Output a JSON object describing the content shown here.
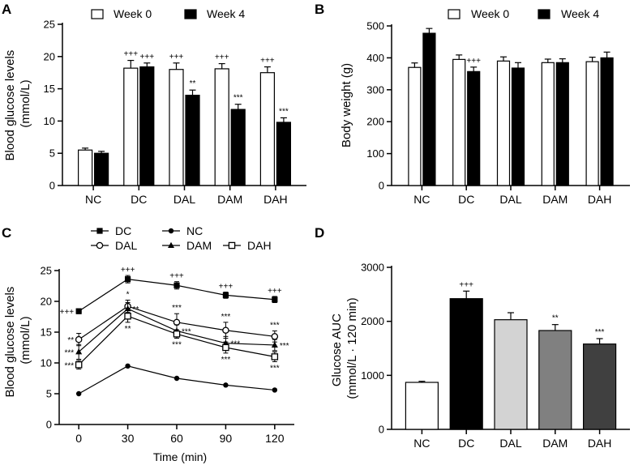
{
  "chart_data": [
    {
      "panel": "A",
      "type": "bar",
      "ylabel_lines": [
        "Blood glucose levels",
        "(mmol/L)"
      ],
      "ylim": [
        0,
        25
      ],
      "yticks": [
        0,
        5,
        10,
        15,
        20,
        25
      ],
      "categories": [
        "NC",
        "DC",
        "DAL",
        "DAM",
        "DAH"
      ],
      "series": [
        {
          "name": "Week 0",
          "fill": "#ffffff",
          "values": [
            5.5,
            18.2,
            18.0,
            18.1,
            17.5
          ],
          "errors": [
            0.3,
            1.2,
            1.0,
            0.8,
            0.9
          ]
        },
        {
          "name": "Week 4",
          "fill": "#000000",
          "values": [
            5.0,
            18.4,
            14.0,
            11.8,
            9.8
          ],
          "errors": [
            0.3,
            0.6,
            0.8,
            0.8,
            0.7
          ]
        }
      ],
      "annotations": [
        {
          "series": 0,
          "index": 1,
          "text": "+++"
        },
        {
          "series": 1,
          "index": 1,
          "text": "+++"
        },
        {
          "series": 0,
          "index": 2,
          "text": "+++"
        },
        {
          "series": 1,
          "index": 2,
          "text": "**"
        },
        {
          "series": 0,
          "index": 3,
          "text": "+++"
        },
        {
          "series": 1,
          "index": 3,
          "text": "***"
        },
        {
          "series": 0,
          "index": 4,
          "text": "+++"
        },
        {
          "series": 1,
          "index": 4,
          "text": "***"
        }
      ]
    },
    {
      "panel": "B",
      "type": "bar",
      "ylabel_lines": [
        "Body weight (g)"
      ],
      "ylim": [
        0,
        500
      ],
      "yticks": [
        0,
        100,
        200,
        300,
        400,
        500
      ],
      "categories": [
        "NC",
        "DC",
        "DAL",
        "DAM",
        "DAH"
      ],
      "series": [
        {
          "name": "Week 0",
          "fill": "#ffffff",
          "values": [
            370,
            395,
            390,
            385,
            388
          ],
          "errors": [
            14,
            14,
            13,
            11,
            14
          ]
        },
        {
          "name": "Week 4",
          "fill": "#000000",
          "values": [
            477,
            357,
            368,
            385,
            400
          ],
          "errors": [
            15,
            14,
            17,
            12,
            18
          ]
        }
      ],
      "annotations": [
        {
          "series": 1,
          "index": 1,
          "text": "+++"
        }
      ]
    },
    {
      "panel": "C",
      "type": "line",
      "ylabel_lines": [
        "Blood glucose levels",
        "(mmol/L)"
      ],
      "xlabel": "Time (min)",
      "x": [
        0,
        30,
        60,
        90,
        120
      ],
      "xlim": [
        -12,
        132
      ],
      "ylim": [
        0,
        25
      ],
      "yticks": [
        0,
        5,
        10,
        15,
        20,
        25
      ],
      "series": [
        {
          "name": "DC",
          "marker": "square",
          "values": [
            18.4,
            23.6,
            22.6,
            21.0,
            20.3
          ],
          "errors": [
            0.4,
            0.6,
            0.6,
            0.5,
            0.5
          ]
        },
        {
          "name": "NC",
          "marker": "circle",
          "values": [
            5.0,
            9.5,
            7.5,
            6.4,
            5.6
          ],
          "errors": [
            0.2,
            0.2,
            0.2,
            0.2,
            0.2
          ]
        },
        {
          "name": "DAL",
          "marker": "open-circle",
          "values": [
            13.8,
            19.2,
            16.6,
            15.3,
            14.3
          ],
          "errors": [
            1.0,
            1.0,
            1.4,
            1.3,
            0.9
          ]
        },
        {
          "name": "DAM",
          "marker": "triangle",
          "values": [
            11.8,
            18.8,
            15.2,
            13.2,
            12.9
          ],
          "errors": [
            1.2,
            1.0,
            1.0,
            1.1,
            0.9
          ]
        },
        {
          "name": "DAH",
          "marker": "open-square",
          "values": [
            9.7,
            17.6,
            14.7,
            12.5,
            11.0
          ],
          "errors": [
            0.7,
            1.0,
            0.7,
            0.9,
            0.8
          ]
        }
      ],
      "annotations": [
        {
          "text": "+++",
          "x": 0,
          "y": 18.4,
          "pos": "left"
        },
        {
          "text": "**",
          "x": 0,
          "y": 13.8,
          "pos": "left"
        },
        {
          "text": "***",
          "x": 0,
          "y": 11.8,
          "pos": "left"
        },
        {
          "text": "***",
          "x": 0,
          "y": 9.7,
          "pos": "left"
        },
        {
          "text": "+++",
          "x": 30,
          "y": 24.2,
          "pos": "above"
        },
        {
          "text": "*",
          "x": 30,
          "y": 20.2,
          "pos": "above"
        },
        {
          "text": "**",
          "x": 30,
          "y": 18.8,
          "pos": "right"
        },
        {
          "text": "**",
          "x": 30,
          "y": 16.6,
          "pos": "below"
        },
        {
          "text": "+++",
          "x": 60,
          "y": 23.2,
          "pos": "above"
        },
        {
          "text": "***",
          "x": 60,
          "y": 18.0,
          "pos": "above"
        },
        {
          "text": "***",
          "x": 60,
          "y": 15.2,
          "pos": "right"
        },
        {
          "text": "***",
          "x": 60,
          "y": 14.0,
          "pos": "below"
        },
        {
          "text": "+++",
          "x": 90,
          "y": 21.5,
          "pos": "above"
        },
        {
          "text": "***",
          "x": 90,
          "y": 16.6,
          "pos": "above"
        },
        {
          "text": "***",
          "x": 90,
          "y": 13.2,
          "pos": "right"
        },
        {
          "text": "***",
          "x": 90,
          "y": 11.6,
          "pos": "below"
        },
        {
          "text": "+++",
          "x": 120,
          "y": 20.8,
          "pos": "above"
        },
        {
          "text": "***",
          "x": 120,
          "y": 15.2,
          "pos": "above"
        },
        {
          "text": "***",
          "x": 120,
          "y": 12.9,
          "pos": "right"
        },
        {
          "text": "***",
          "x": 120,
          "y": 10.2,
          "pos": "below"
        }
      ]
    },
    {
      "panel": "D",
      "type": "bar",
      "ylabel_lines": [
        "Glucose AUC",
        "(mmol/L · 120 min)"
      ],
      "ylim": [
        0,
        3000
      ],
      "yticks": [
        0,
        1000,
        2000,
        3000
      ],
      "categories": [
        "NC",
        "DC",
        "DAL",
        "DAM",
        "DAH"
      ],
      "series": [
        {
          "name": "AUC",
          "values": [
            870,
            2420,
            2030,
            1830,
            1580
          ],
          "errors": [
            20,
            140,
            130,
            110,
            100
          ],
          "fills": [
            "#ffffff",
            "#000000",
            "#d3d3d3",
            "#808080",
            "#404040"
          ]
        }
      ],
      "annotations": [
        {
          "series": 0,
          "index": 1,
          "text": "+++"
        },
        {
          "series": 0,
          "index": 3,
          "text": "**"
        },
        {
          "series": 0,
          "index": 4,
          "text": "***"
        }
      ]
    }
  ]
}
